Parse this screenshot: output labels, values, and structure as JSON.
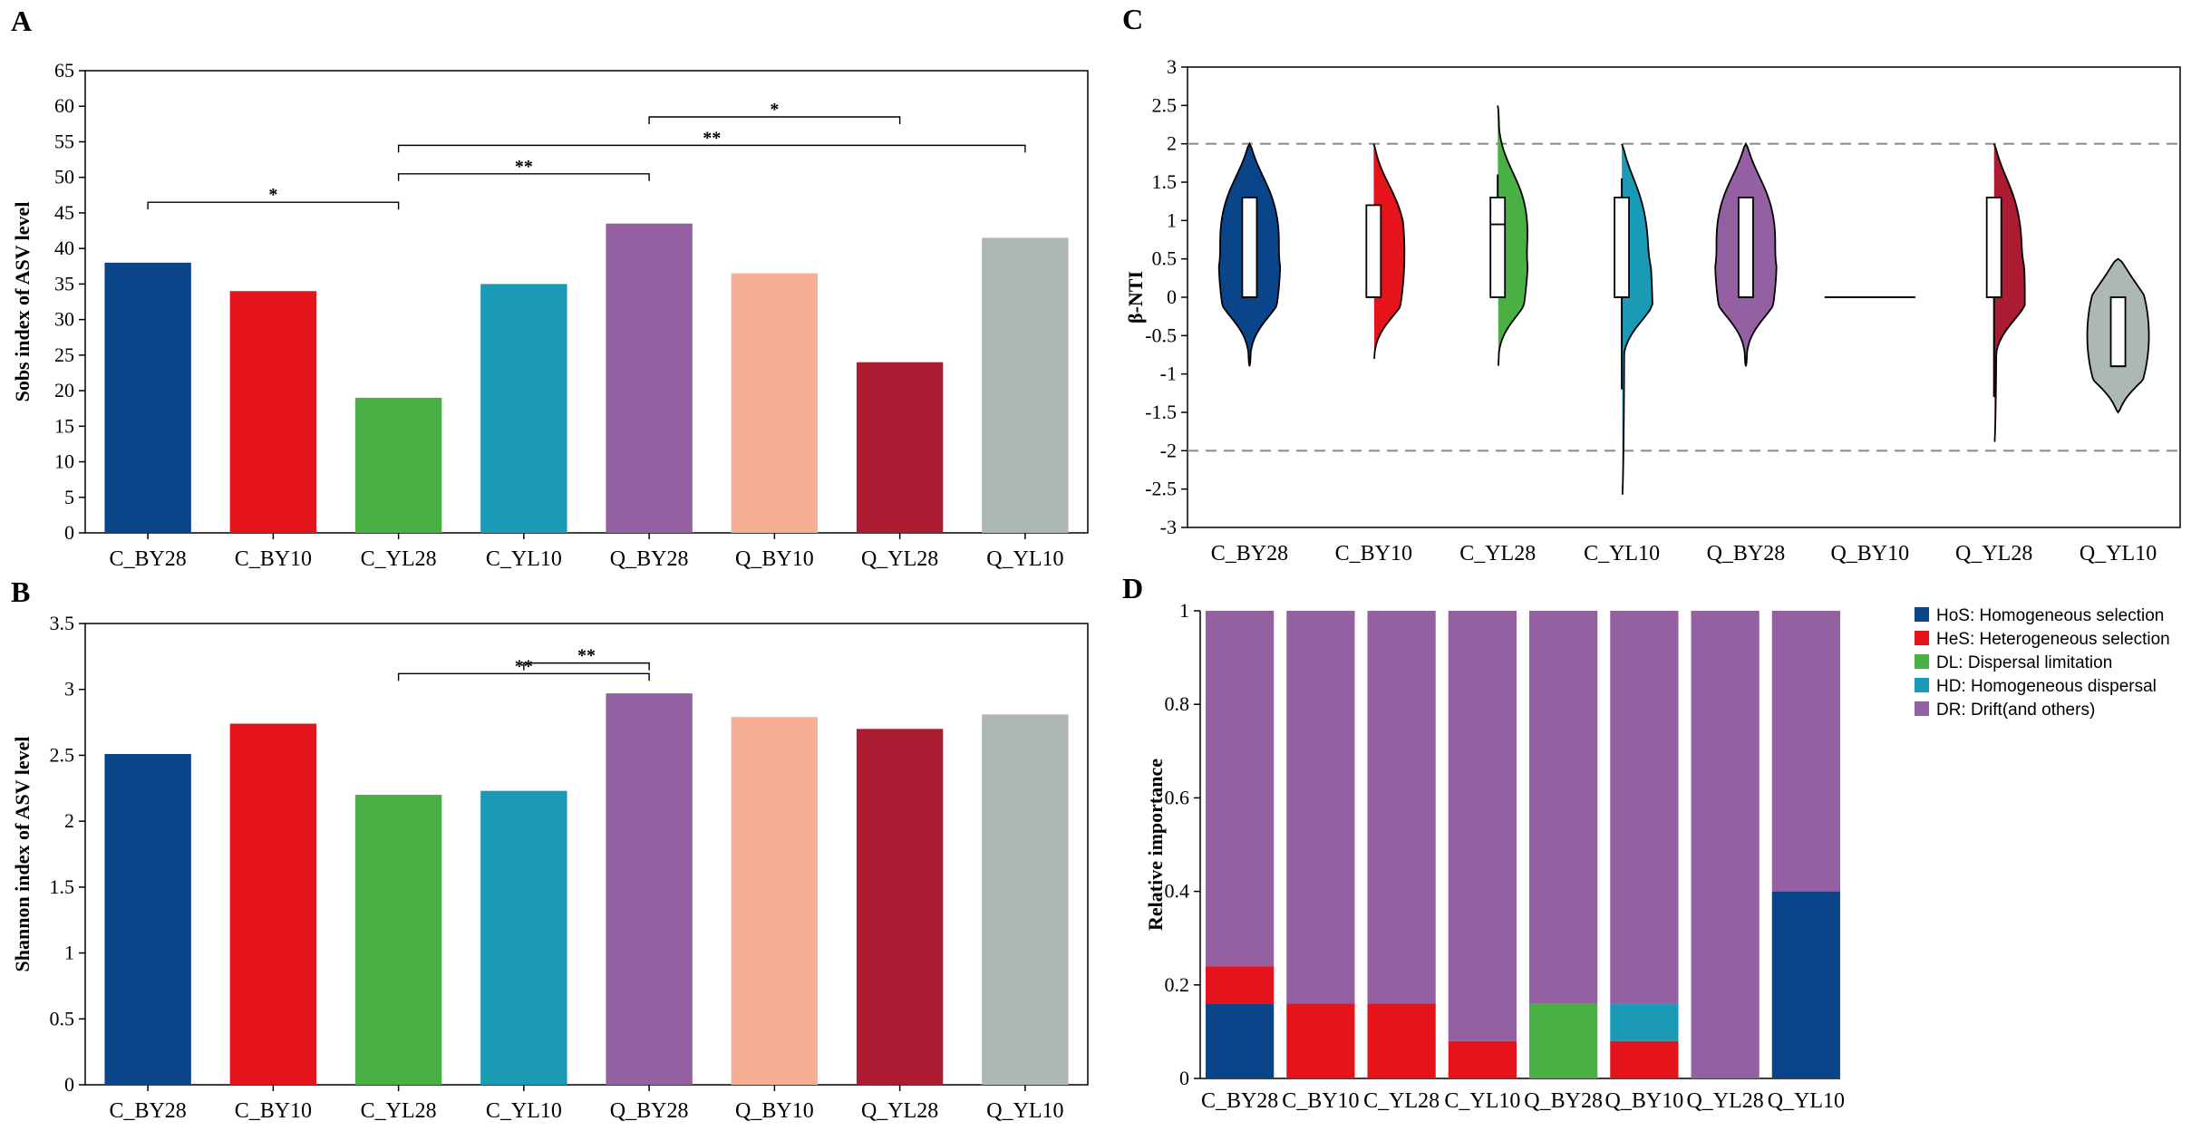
{
  "colors": {
    "C_BY28": "#0b4589",
    "C_BY10": "#e5141b",
    "C_YL28": "#49b043",
    "C_YL10": "#1a9ab5",
    "Q_BY28": "#9460a1",
    "Q_BY10": "#f6ae94",
    "Q_YL28": "#ab1b32",
    "Q_YL10": "#adb7b5",
    "HoS": "#0b4589",
    "HeS": "#e5141b",
    "DL": "#49b043",
    "HD": "#1a9ab5",
    "DR": "#9460a1"
  },
  "chart_data": [
    {
      "panel": "A",
      "type": "bar",
      "ylabel": "Sobs index of ASV level",
      "ylim": [
        0,
        65
      ],
      "yticks": [
        "0",
        "5",
        "10",
        "15",
        "20",
        "25",
        "30",
        "35",
        "40",
        "45",
        "50",
        "55",
        "60",
        "65"
      ],
      "categories": [
        "C_BY28",
        "C_BY10",
        "C_YL28",
        "C_YL10",
        "Q_BY28",
        "Q_BY10",
        "Q_YL28",
        "Q_YL10"
      ],
      "values": [
        38,
        34,
        19,
        35,
        43.5,
        36.5,
        24,
        41.5
      ],
      "significance": [
        {
          "from": 0,
          "to": 2,
          "y": 46.5,
          "label": "*"
        },
        {
          "from": 2,
          "to": 4,
          "y": 50.5,
          "label": "**"
        },
        {
          "from": 2,
          "to": 7,
          "y": 54.5,
          "label": "**"
        },
        {
          "from": 4,
          "to": 6,
          "y": 58.5,
          "label": "*"
        }
      ]
    },
    {
      "panel": "B",
      "type": "bar",
      "ylabel": "Shannon index of ASV level",
      "ylim": [
        0,
        3.5
      ],
      "yticks": [
        "0",
        "0.5",
        "1",
        "1.5",
        "2",
        "2.5",
        "3",
        "3.5"
      ],
      "categories": [
        "C_BY28",
        "C_BY10",
        "C_YL28",
        "C_YL10",
        "Q_BY28",
        "Q_BY10",
        "Q_YL28",
        "Q_YL10"
      ],
      "values": [
        2.51,
        2.74,
        2.2,
        2.23,
        2.97,
        2.79,
        2.7,
        2.81
      ],
      "significance": [
        {
          "from": 2,
          "to": 4,
          "y": 3.12,
          "label": "**"
        },
        {
          "from": 3,
          "to": 4,
          "y": 3.2,
          "label": "**"
        }
      ]
    },
    {
      "panel": "C",
      "type": "violin",
      "ylabel": "β-NTI",
      "ylim": [
        -3,
        3
      ],
      "yticks": [
        "3",
        "2.5",
        "2",
        "1.5",
        "1",
        "0.5",
        "0",
        "-0.5",
        "-1",
        "-1.5",
        "-2",
        "-2.5",
        "-3"
      ],
      "reference_lines": [
        2,
        -2
      ],
      "categories": [
        "C_BY28",
        "C_BY10",
        "C_YL28",
        "C_YL10",
        "Q_BY28",
        "Q_BY10",
        "Q_YL28",
        "Q_YL10"
      ],
      "groups": [
        {
          "name": "C_BY28",
          "min": -0.9,
          "max": 2.0,
          "q1": 0.0,
          "q3": 1.3,
          "median": 0.0,
          "whisker_low": 0.0,
          "whisker_high": 1.3
        },
        {
          "name": "C_BY10",
          "min": -0.85,
          "max": 2.0,
          "q1": 0.0,
          "q3": 1.2,
          "median": 0.0,
          "whisker_low": 0.0,
          "whisker_high": 1.2
        },
        {
          "name": "C_YL28",
          "min": -0.95,
          "max": 2.5,
          "q1": 0.0,
          "q3": 1.3,
          "median": 0.95,
          "whisker_low": 0.0,
          "whisker_high": 1.6
        },
        {
          "name": "C_YL10",
          "min": -2.65,
          "max": 2.0,
          "q1": 0.0,
          "q3": 1.3,
          "median": 0.0,
          "whisker_low": -1.2,
          "whisker_high": 1.55
        },
        {
          "name": "Q_BY28",
          "min": -0.9,
          "max": 2.0,
          "q1": 0.0,
          "q3": 1.3,
          "median": 0.0,
          "whisker_low": 0.0,
          "whisker_high": 1.3
        },
        {
          "name": "Q_BY10",
          "min": 0.0,
          "max": 0.0,
          "q1": 0.0,
          "q3": 0.0,
          "median": 0.0,
          "whisker_low": 0.0,
          "whisker_high": 0.0
        },
        {
          "name": "Q_YL28",
          "min": -1.95,
          "max": 2.0,
          "q1": 0.0,
          "q3": 1.3,
          "median": 0.0,
          "whisker_low": -1.3,
          "whisker_high": 1.3
        },
        {
          "name": "Q_YL10",
          "min": -1.5,
          "max": 0.5,
          "q1": -0.9,
          "q3": 0.0,
          "median": -0.9,
          "whisker_low": -0.9,
          "whisker_high": 0.0
        }
      ]
    },
    {
      "panel": "D",
      "type": "stacked_bar",
      "ylabel": "Relative importance",
      "ylim": [
        0,
        1
      ],
      "yticks": [
        "0",
        "0.2",
        "0.4",
        "0.6",
        "0.8",
        "1"
      ],
      "categories": [
        "C_BY28",
        "C_BY10",
        "C_YL28",
        "C_YL10",
        "Q_BY28",
        "Q_BY10",
        "Q_YL28",
        "Q_YL10"
      ],
      "legend": [
        {
          "key": "HoS",
          "label": "HoS: Homogeneous selection"
        },
        {
          "key": "HeS",
          "label": "HeS: Heterogeneous selection"
        },
        {
          "key": "DL",
          "label": "DL: Dispersal limitation"
        },
        {
          "key": "HD",
          "label": "HD: Homogeneous dispersal"
        },
        {
          "key": "DR",
          "label": "DR: Drift(and others)"
        }
      ],
      "series": [
        {
          "name": "HoS",
          "values": [
            0.16,
            0,
            0,
            0,
            0,
            0,
            0,
            0.4
          ]
        },
        {
          "name": "HeS",
          "values": [
            0.08,
            0.16,
            0.16,
            0.08,
            0,
            0.08,
            0,
            0
          ]
        },
        {
          "name": "DL",
          "values": [
            0,
            0,
            0,
            0,
            0.16,
            0,
            0,
            0
          ]
        },
        {
          "name": "HD",
          "values": [
            0,
            0,
            0,
            0,
            0,
            0.08,
            0,
            0
          ]
        },
        {
          "name": "DR",
          "values": [
            0.76,
            0.84,
            0.84,
            0.92,
            0.84,
            0.84,
            1.0,
            0.6
          ]
        }
      ]
    }
  ]
}
